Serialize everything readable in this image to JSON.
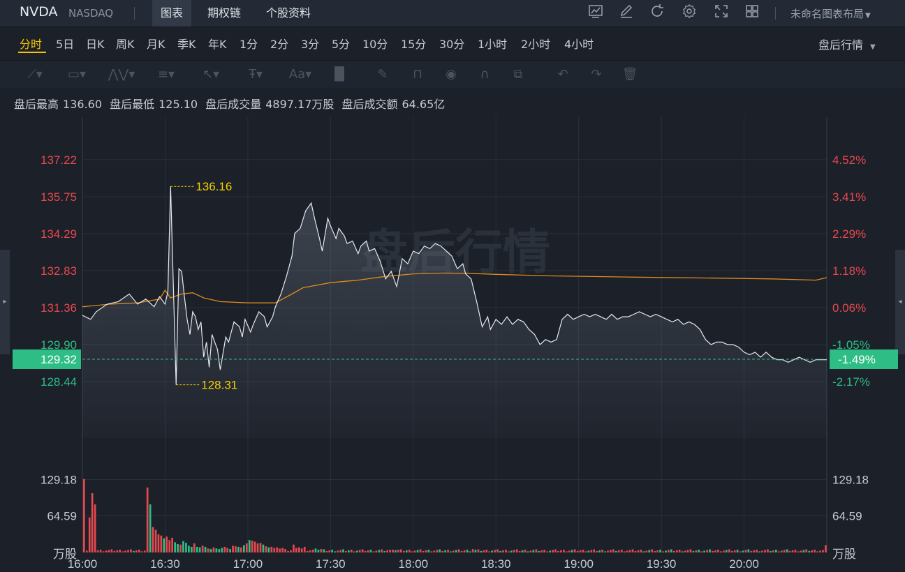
{
  "header": {
    "ticker": "NVDA",
    "exchange": "NASDAQ",
    "tabs": [
      {
        "label": "图表",
        "active": true
      },
      {
        "label": "期权链",
        "active": false
      },
      {
        "label": "个股资料",
        "active": false
      }
    ],
    "layout_name": "未命名图表布局",
    "icons": [
      "chart-icon",
      "edit-icon",
      "refresh-icon",
      "settings-icon",
      "fullscreen-icon",
      "grid-icon"
    ]
  },
  "periods": [
    "分时",
    "5日",
    "日K",
    "周K",
    "月K",
    "季K",
    "年K",
    "1分",
    "2分",
    "3分",
    "5分",
    "10分",
    "15分",
    "30分",
    "1小时",
    "2小时",
    "4小时"
  ],
  "active_period": "分时",
  "session_select": "盘后行情",
  "stats": {
    "high_label": "盘后最高",
    "high": "136.60",
    "low_label": "盘后最低",
    "low": "125.10",
    "volume_label": "盘后成交量",
    "volume": "4897.17万股",
    "turnover_label": "盘后成交额",
    "turnover": "64.65亿"
  },
  "chart_data": {
    "type": "line",
    "watermark": "盘后行情",
    "x_ticks": [
      "16:00",
      "16:30",
      "17:00",
      "17:30",
      "18:00",
      "18:30",
      "19:00",
      "19:30",
      "20:00"
    ],
    "price_ticks": [
      137.22,
      135.75,
      134.29,
      132.83,
      131.36,
      129.9,
      128.44
    ],
    "pct_ticks": [
      "4.52%",
      "3.41%",
      "2.29%",
      "1.18%",
      "0.06%",
      "-1.05%",
      "-2.17%"
    ],
    "current_price": "129.32",
    "current_pct": "-1.49%",
    "high_marker": "136.16",
    "low_marker": "128.31",
    "volume_ticks": [
      "129.18",
      "64.59"
    ],
    "volume_unit": "万股",
    "colors": {
      "price_line": "#e6e9ee",
      "avg_line": "#e08a1e",
      "up": "#e5484d",
      "down": "#2ebd85",
      "marker": "#f5d000",
      "grid": "#2b323d"
    },
    "price_series": [
      [
        0,
        131.06
      ],
      [
        3,
        130.9
      ],
      [
        5,
        131.2
      ],
      [
        9,
        131.5
      ],
      [
        13,
        131.6
      ],
      [
        17,
        131.9
      ],
      [
        20,
        131.5
      ],
      [
        23,
        131.7
      ],
      [
        26,
        131.4
      ],
      [
        28,
        131.8
      ],
      [
        30,
        131.5
      ],
      [
        31,
        132.0
      ],
      [
        32,
        136.16
      ],
      [
        33,
        132.2
      ],
      [
        34,
        128.31
      ],
      [
        35,
        132.9
      ],
      [
        36,
        132.8
      ],
      [
        37,
        131.8
      ],
      [
        38,
        130.9
      ],
      [
        39,
        130.3
      ],
      [
        40,
        131.2
      ],
      [
        41,
        131.0
      ],
      [
        42,
        130.5
      ],
      [
        43,
        130.8
      ],
      [
        44,
        129.4
      ],
      [
        45,
        130.0
      ],
      [
        46,
        129.0
      ],
      [
        47,
        130.3
      ],
      [
        48,
        130.0
      ],
      [
        49,
        129.7
      ],
      [
        50,
        128.9
      ],
      [
        52,
        130.2
      ],
      [
        53,
        130.0
      ],
      [
        55,
        130.8
      ],
      [
        57,
        130.6
      ],
      [
        58,
        130.2
      ],
      [
        59,
        130.9
      ],
      [
        61,
        130.4
      ],
      [
        62,
        130.7
      ],
      [
        64,
        131.2
      ],
      [
        66,
        131.0
      ],
      [
        67,
        130.6
      ],
      [
        69,
        131.0
      ],
      [
        70,
        131.4
      ],
      [
        72,
        131.9
      ],
      [
        74,
        132.6
      ],
      [
        76,
        133.4
      ],
      [
        77,
        134.3
      ],
      [
        79,
        134.5
      ],
      [
        81,
        135.2
      ],
      [
        83,
        135.5
      ],
      [
        84,
        135.0
      ],
      [
        86,
        134.1
      ],
      [
        87,
        133.6
      ],
      [
        89,
        134.9
      ],
      [
        90,
        134.6
      ],
      [
        92,
        134.1
      ],
      [
        93,
        134.5
      ],
      [
        95,
        134.2
      ],
      [
        96,
        133.9
      ],
      [
        98,
        134.0
      ],
      [
        100,
        133.5
      ],
      [
        101,
        133.8
      ],
      [
        103,
        134.0
      ],
      [
        104,
        133.6
      ],
      [
        106,
        133.7
      ],
      [
        108,
        133.2
      ],
      [
        110,
        132.5
      ],
      [
        112,
        132.8
      ],
      [
        114,
        132.2
      ],
      [
        116,
        133.3
      ],
      [
        118,
        133.1
      ],
      [
        120,
        133.6
      ],
      [
        122,
        133.5
      ],
      [
        124,
        133.8
      ],
      [
        126,
        133.7
      ],
      [
        128,
        133.9
      ],
      [
        130,
        133.8
      ],
      [
        132,
        133.6
      ],
      [
        134,
        133.4
      ],
      [
        136,
        132.9
      ],
      [
        138,
        133.1
      ],
      [
        139,
        132.7
      ],
      [
        141,
        132.5
      ],
      [
        143,
        131.6
      ],
      [
        145,
        130.6
      ],
      [
        147,
        131.0
      ],
      [
        148,
        130.5
      ],
      [
        150,
        130.9
      ],
      [
        152,
        130.7
      ],
      [
        154,
        131.0
      ],
      [
        156,
        130.7
      ],
      [
        158,
        130.9
      ],
      [
        160,
        130.8
      ],
      [
        162,
        130.5
      ],
      [
        164,
        130.3
      ],
      [
        166,
        129.9
      ],
      [
        168,
        130.1
      ],
      [
        170,
        130.0
      ],
      [
        172,
        130.1
      ],
      [
        174,
        130.9
      ],
      [
        176,
        131.1
      ],
      [
        178,
        130.9
      ],
      [
        180,
        131.0
      ],
      [
        182,
        131.1
      ],
      [
        184,
        131.0
      ],
      [
        186,
        131.1
      ],
      [
        188,
        131.0
      ],
      [
        190,
        130.9
      ],
      [
        192,
        131.1
      ],
      [
        194,
        130.9
      ],
      [
        196,
        131.0
      ],
      [
        198,
        131.0
      ],
      [
        200,
        131.1
      ],
      [
        202,
        131.2
      ],
      [
        204,
        131.1
      ],
      [
        206,
        131.0
      ],
      [
        208,
        131.1
      ],
      [
        210,
        131.0
      ],
      [
        212,
        130.9
      ],
      [
        214,
        130.8
      ],
      [
        216,
        130.9
      ],
      [
        218,
        130.7
      ],
      [
        220,
        130.8
      ],
      [
        222,
        130.7
      ],
      [
        224,
        130.5
      ],
      [
        226,
        130.1
      ],
      [
        228,
        129.9
      ],
      [
        230,
        130.0
      ],
      [
        232,
        130.0
      ],
      [
        234,
        129.9
      ],
      [
        236,
        129.9
      ],
      [
        238,
        129.8
      ],
      [
        240,
        129.6
      ],
      [
        242,
        129.5
      ],
      [
        244,
        129.6
      ],
      [
        246,
        129.4
      ],
      [
        248,
        129.6
      ],
      [
        250,
        129.4
      ],
      [
        252,
        129.3
      ],
      [
        254,
        129.3
      ],
      [
        256,
        129.2
      ],
      [
        258,
        129.3
      ],
      [
        260,
        129.4
      ],
      [
        262,
        129.3
      ],
      [
        264,
        129.2
      ],
      [
        266,
        129.3
      ],
      [
        268,
        129.3
      ],
      [
        270,
        129.3
      ]
    ],
    "avg_series": [
      [
        0,
        131.4
      ],
      [
        10,
        131.5
      ],
      [
        20,
        131.55
      ],
      [
        28,
        131.7
      ],
      [
        30,
        132.05
      ],
      [
        32,
        131.75
      ],
      [
        36,
        131.9
      ],
      [
        40,
        131.95
      ],
      [
        44,
        131.75
      ],
      [
        50,
        131.6
      ],
      [
        60,
        131.55
      ],
      [
        70,
        131.55
      ],
      [
        76,
        131.9
      ],
      [
        80,
        132.15
      ],
      [
        90,
        132.35
      ],
      [
        100,
        132.45
      ],
      [
        110,
        132.6
      ],
      [
        120,
        132.7
      ],
      [
        130,
        132.73
      ],
      [
        140,
        132.72
      ],
      [
        150,
        132.68
      ],
      [
        170,
        132.62
      ],
      [
        200,
        132.57
      ],
      [
        230,
        132.53
      ],
      [
        250,
        132.5
      ],
      [
        266,
        132.45
      ],
      [
        270,
        132.55
      ]
    ],
    "volume_spikes": [
      [
        0,
        130.0
      ],
      [
        2,
        62.0
      ],
      [
        3,
        105.0
      ],
      [
        4,
        85.0
      ],
      [
        23,
        115.0
      ],
      [
        24,
        85.0
      ],
      [
        25,
        45.0
      ],
      [
        26,
        40.0
      ],
      [
        27,
        32.0
      ],
      [
        28,
        30.0
      ],
      [
        29,
        25.0
      ],
      [
        30,
        28.0
      ],
      [
        31,
        22.0
      ],
      [
        32,
        26.0
      ],
      [
        33,
        18.0
      ],
      [
        34,
        15.0
      ],
      [
        35,
        14.0
      ],
      [
        36,
        20.0
      ],
      [
        37,
        17.0
      ],
      [
        38,
        12.0
      ],
      [
        39,
        10.0
      ],
      [
        40,
        16.0
      ],
      [
        41,
        10.0
      ],
      [
        42,
        9.0
      ],
      [
        43,
        12.0
      ],
      [
        44,
        10.0
      ],
      [
        45,
        7.0
      ],
      [
        46,
        6.0
      ],
      [
        47,
        9.0
      ],
      [
        48,
        7.0
      ],
      [
        49,
        6.0
      ],
      [
        50,
        8.0
      ],
      [
        51,
        10.0
      ],
      [
        52,
        8.0
      ],
      [
        53,
        6.0
      ],
      [
        54,
        12.0
      ],
      [
        55,
        11.0
      ],
      [
        56,
        10.0
      ],
      [
        57,
        9.0
      ],
      [
        58,
        13.0
      ],
      [
        59,
        16.0
      ],
      [
        60,
        22.0
      ],
      [
        61,
        21.0
      ],
      [
        62,
        19.0
      ],
      [
        63,
        16.0
      ],
      [
        64,
        17.0
      ],
      [
        65,
        14.0
      ],
      [
        66,
        11.0
      ],
      [
        67,
        9.0
      ],
      [
        68,
        10.0
      ],
      [
        69,
        8.0
      ],
      [
        70,
        9.0
      ],
      [
        71,
        7.0
      ],
      [
        72,
        8.0
      ],
      [
        73,
        6.0
      ],
      [
        76,
        14.0
      ],
      [
        77,
        8.0
      ],
      [
        78,
        9.0
      ],
      [
        79,
        7.0
      ],
      [
        80,
        10.0
      ],
      [
        84,
        7.0
      ],
      [
        85,
        5.0
      ],
      [
        86,
        6.0
      ],
      [
        112,
        5.0
      ],
      [
        113,
        4.0
      ],
      [
        114,
        5.0
      ],
      [
        141,
        6.0
      ],
      [
        142,
        5.0
      ],
      [
        269,
        13.0
      ]
    ]
  }
}
